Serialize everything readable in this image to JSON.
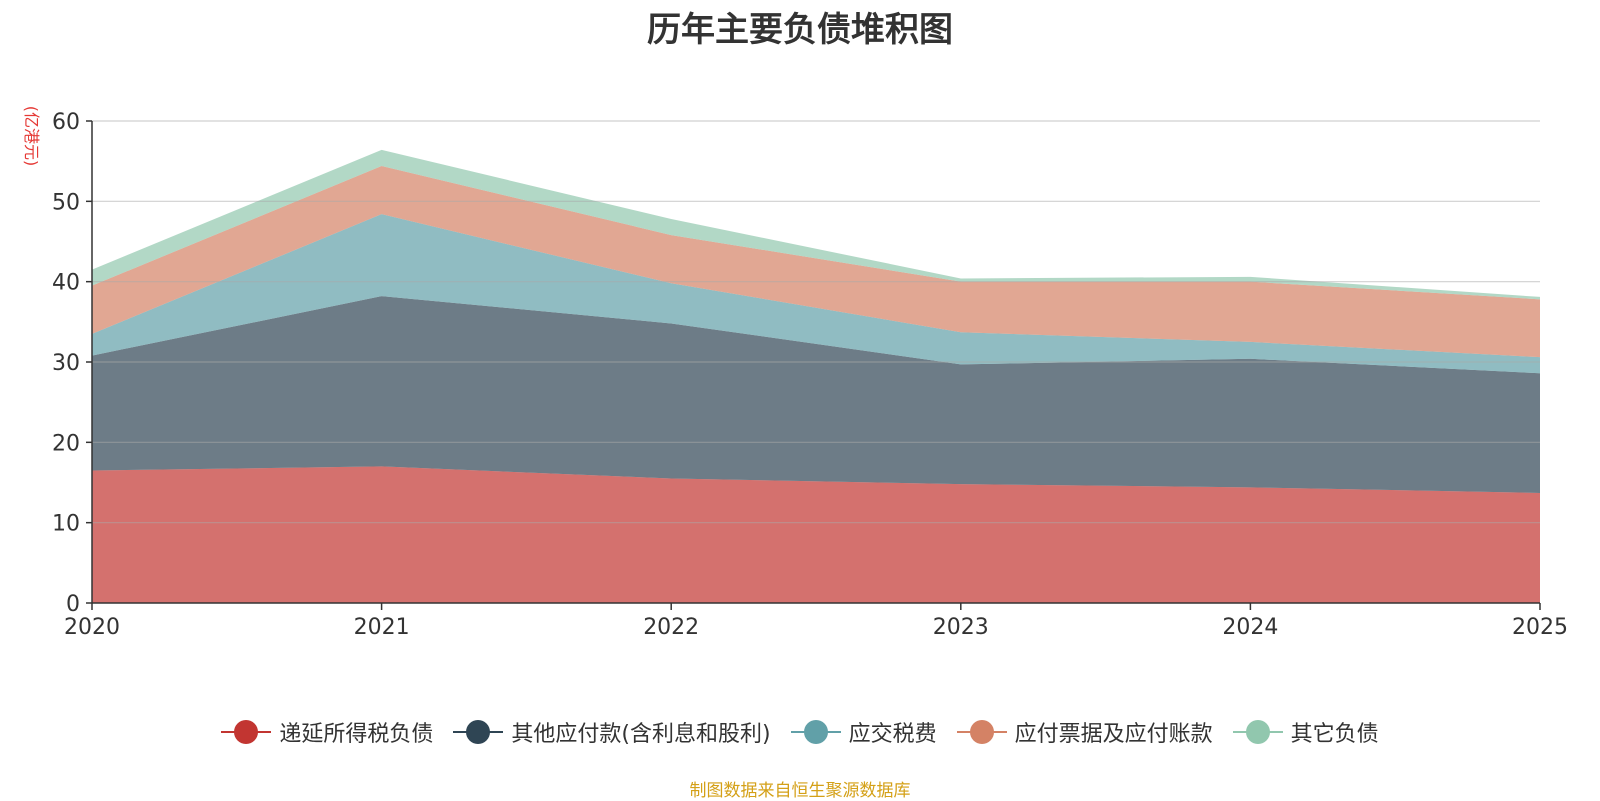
{
  "chart_data": {
    "type": "area",
    "stacked": true,
    "title": "历年主要负债堆积图",
    "ylabel": "(亿港元)",
    "xlabel": "",
    "categories": [
      "2020",
      "2021",
      "2022",
      "2023",
      "2024",
      "2025"
    ],
    "ylim": [
      0,
      60
    ],
    "yticks": [
      0,
      10,
      20,
      30,
      40,
      50,
      60
    ],
    "grid": true,
    "legend_position": "bottom",
    "series": [
      {
        "name": "递延所得税负债",
        "color": "#c23531",
        "values": [
          16.5,
          17.0,
          15.5,
          14.8,
          14.4,
          13.7
        ]
      },
      {
        "name": "其他应付款(含利息和股利)",
        "color": "#2f4554",
        "values": [
          14.3,
          21.2,
          19.3,
          14.9,
          16.0,
          14.9
        ]
      },
      {
        "name": "应交税费",
        "color": "#61a0a8",
        "values": [
          2.7,
          10.2,
          5.0,
          4.0,
          2.1,
          2.0
        ]
      },
      {
        "name": "应付票据及应付账款",
        "color": "#d48265",
        "values": [
          6.0,
          6.0,
          6.0,
          6.3,
          7.5,
          7.2
        ]
      },
      {
        "name": "其它负债",
        "color": "#91c7ae",
        "values": [
          2.0,
          2.0,
          2.0,
          0.4,
          0.6,
          0.3
        ]
      }
    ],
    "source": "制图数据来自恒生聚源数据库"
  }
}
